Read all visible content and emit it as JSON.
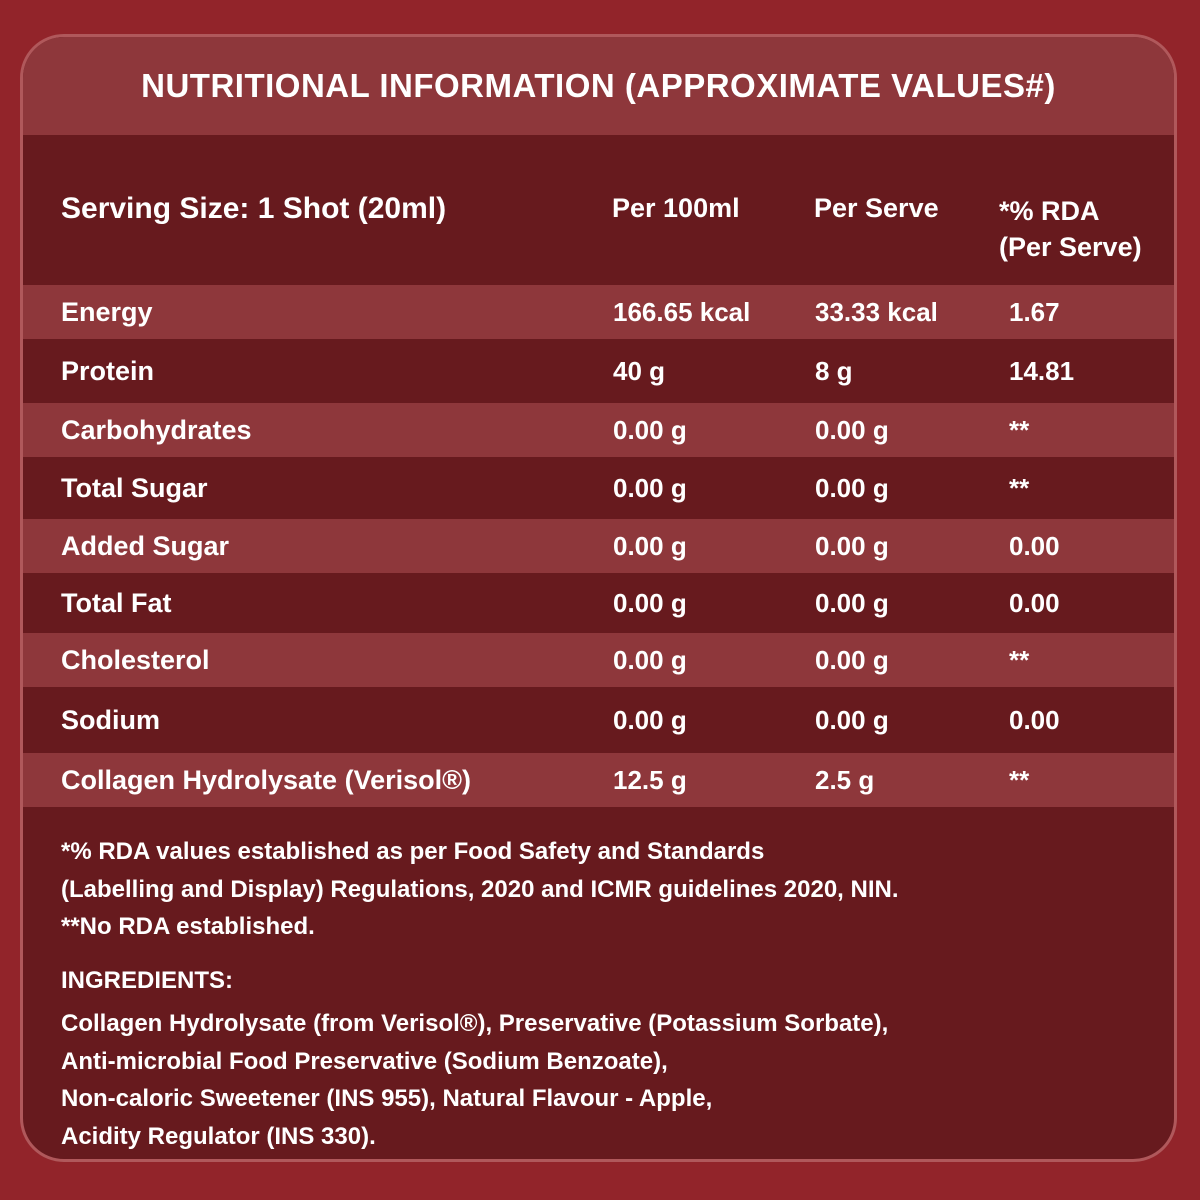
{
  "title": "NUTRITIONAL INFORMATION (APPROXIMATE VALUES#)",
  "header": {
    "serving": "Serving Size: 1 Shot (20ml)",
    "per100": "Per 100ml",
    "perserve": "Per Serve",
    "rda_line1": "*% RDA",
    "rda_line2": "(Per Serve)"
  },
  "rows": [
    {
      "name": "Energy",
      "per100": "166.65 kcal",
      "perserve": "33.33 kcal",
      "rda": "1.67"
    },
    {
      "name": "Protein",
      "per100": "40 g",
      "perserve": "8 g",
      "rda": "14.81"
    },
    {
      "name": "Carbohydrates",
      "per100": "0.00 g",
      "perserve": "0.00 g",
      "rda": "**"
    },
    {
      "name": "Total Sugar",
      "per100": "0.00 g",
      "perserve": "0.00 g",
      "rda": "**"
    },
    {
      "name": "Added Sugar",
      "per100": "0.00 g",
      "perserve": "0.00 g",
      "rda": "0.00"
    },
    {
      "name": "Total Fat",
      "per100": "0.00 g",
      "perserve": "0.00 g",
      "rda": "0.00"
    },
    {
      "name": "Cholesterol",
      "per100": "0.00 g",
      "perserve": "0.00 g",
      "rda": "**"
    },
    {
      "name": "Sodium",
      "per100": "0.00 g",
      "perserve": "0.00 g",
      "rda": "0.00"
    },
    {
      "name": "Collagen Hydrolysate (Verisol®)",
      "per100": "12.5 g",
      "perserve": "2.5 g",
      "rda": "**"
    }
  ],
  "notes": [
    "*% RDA values established as per Food Safety and Standards",
    "(Labelling and Display) Regulations, 2020 and ICMR guidelines 2020, NIN.",
    "**No RDA established."
  ],
  "ingredients_title": "INGREDIENTS:",
  "ingredients": [
    "Collagen Hydrolysate (from Verisol®), Preservative (Potassium Sorbate),",
    "Anti-microbial Food Preservative (Sodium Benzoate),",
    "Non-caloric Sweetener (INS 955), Natural Flavour - Apple,",
    "Acidity Regulator (INS 330)."
  ],
  "colors": {
    "background": "#92242a",
    "panel_dark": "#671a1e",
    "panel_light": "#8e373b",
    "border": "#b0585b",
    "text": "#ffffff"
  }
}
